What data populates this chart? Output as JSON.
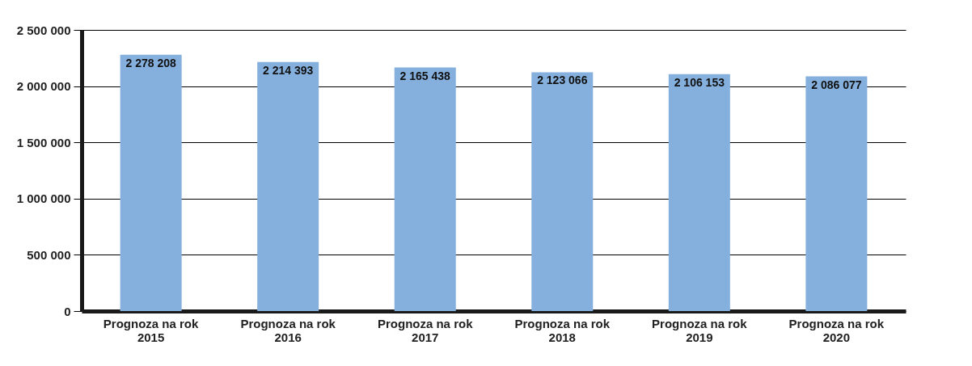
{
  "chart_data": {
    "type": "bar",
    "categories": [
      "Prognoza na rok 2015",
      "Prognoza na rok 2016",
      "Prognoza na rok 2017",
      "Prognoza na rok 2018",
      "Prognoza na rok 2019",
      "Prognoza na rok 2020"
    ],
    "values": [
      2278208,
      2214393,
      2165438,
      2123066,
      2106153,
      2086077
    ],
    "color": "#85b0dd",
    "ylim": [
      0,
      2500000
    ],
    "yticks": [
      0,
      {
        "value": 500000,
        "label": "500 000"
      },
      {
        "value": 1000000,
        "label": "1 000 000"
      },
      {
        "value": 1500000,
        "label": "1 500 000"
      },
      {
        "value": 2000000,
        "label": "2 000 000"
      },
      {
        "value": 2500000,
        "label": "2 500 000"
      }
    ],
    "grid": "y",
    "data_labels": true
  }
}
